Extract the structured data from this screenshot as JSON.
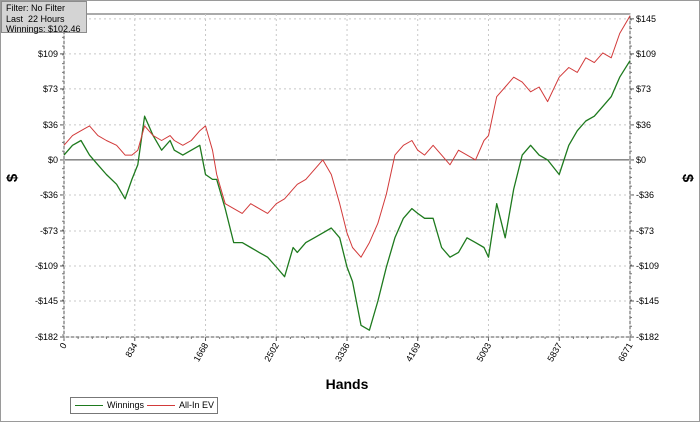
{
  "filter_panel": {
    "line1": "Filter: No Filter",
    "line2": "Last  22 Hours",
    "line3": "Winnings: $102.46"
  },
  "legend": [
    {
      "label": "Winnings",
      "color": "#1e7a1e"
    },
    {
      "label": "All-In EV",
      "color": "#d23a3a"
    }
  ],
  "chart_data": {
    "type": "line",
    "xlabel": "Hands",
    "ylabel": "$",
    "xlim": [
      0,
      6671
    ],
    "ylim": [
      -182,
      150
    ],
    "xticks": [
      0,
      834,
      1668,
      2502,
      3336,
      4169,
      5003,
      5837,
      6671
    ],
    "yticks": [
      145,
      109,
      73,
      36,
      0,
      -36,
      -73,
      -109,
      -145,
      -182
    ],
    "ytick_labels": [
      "$145",
      "$109",
      "$73",
      "$36",
      "$0",
      "-$36",
      "-$73",
      "-$109",
      "-$145",
      "-$182"
    ],
    "grid": true,
    "series": [
      {
        "name": "Winnings",
        "color": "#1e7a1e",
        "x": [
          0,
          100,
          200,
          300,
          400,
          500,
          620,
          720,
          800,
          870,
          950,
          1050,
          1150,
          1250,
          1300,
          1400,
          1500,
          1600,
          1668,
          1750,
          1800,
          1900,
          2000,
          2100,
          2200,
          2300,
          2400,
          2502,
          2600,
          2700,
          2750,
          2850,
          2950,
          3050,
          3150,
          3250,
          3336,
          3400,
          3500,
          3600,
          3700,
          3800,
          3900,
          4000,
          4100,
          4169,
          4250,
          4350,
          4450,
          4550,
          4650,
          4750,
          4850,
          4950,
          5003,
          5100,
          5200,
          5300,
          5400,
          5500,
          5600,
          5700,
          5837,
          5950,
          6050,
          6150,
          6250,
          6350,
          6450,
          6550,
          6671
        ],
        "y": [
          5,
          15,
          20,
          5,
          -5,
          -15,
          -25,
          -40,
          -20,
          -5,
          45,
          25,
          10,
          20,
          10,
          5,
          10,
          15,
          -15,
          -20,
          -20,
          -50,
          -85,
          -85,
          -90,
          -95,
          -100,
          -110,
          -120,
          -90,
          -95,
          -85,
          -80,
          -75,
          -70,
          -80,
          -110,
          -125,
          -170,
          -175,
          -145,
          -110,
          -80,
          -60,
          -50,
          -55,
          -60,
          -60,
          -90,
          -100,
          -95,
          -80,
          -85,
          -90,
          -100,
          -45,
          -80,
          -30,
          5,
          15,
          5,
          0,
          -15,
          15,
          30,
          40,
          45,
          55,
          65,
          85,
          102
        ]
      },
      {
        "name": "All-In EV",
        "color": "#d23a3a",
        "x": [
          0,
          100,
          200,
          300,
          400,
          500,
          620,
          720,
          800,
          870,
          950,
          1050,
          1150,
          1250,
          1300,
          1400,
          1500,
          1600,
          1668,
          1750,
          1800,
          1900,
          2000,
          2100,
          2200,
          2300,
          2400,
          2502,
          2600,
          2700,
          2750,
          2850,
          2950,
          3050,
          3150,
          3250,
          3336,
          3400,
          3500,
          3600,
          3700,
          3800,
          3900,
          4000,
          4100,
          4169,
          4250,
          4350,
          4450,
          4550,
          4650,
          4750,
          4850,
          4950,
          5003,
          5100,
          5200,
          5300,
          5400,
          5500,
          5600,
          5700,
          5837,
          5950,
          6050,
          6150,
          6250,
          6350,
          6450,
          6550,
          6671
        ],
        "y": [
          15,
          25,
          30,
          35,
          25,
          20,
          15,
          5,
          5,
          10,
          35,
          25,
          20,
          25,
          20,
          15,
          20,
          30,
          35,
          10,
          -15,
          -45,
          -50,
          -55,
          -45,
          -50,
          -55,
          -45,
          -40,
          -30,
          -25,
          -20,
          -10,
          0,
          -15,
          -45,
          -75,
          -90,
          -100,
          -85,
          -65,
          -35,
          5,
          15,
          20,
          10,
          5,
          15,
          5,
          -5,
          10,
          5,
          0,
          20,
          25,
          65,
          75,
          85,
          80,
          70,
          75,
          60,
          85,
          95,
          90,
          105,
          100,
          110,
          105,
          130,
          148
        ]
      }
    ]
  }
}
